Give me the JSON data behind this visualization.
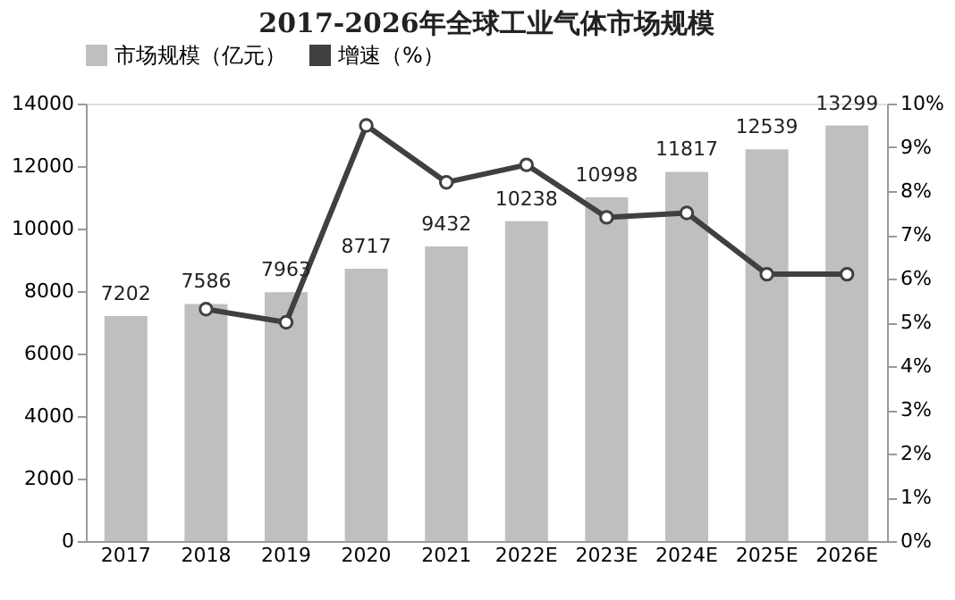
{
  "chart_data": {
    "type": "bar",
    "title": "2017-2026年全球工业气体市场规模",
    "categories": [
      "2017",
      "2018",
      "2019",
      "2020",
      "2021",
      "2022E",
      "2023E",
      "2024E",
      "2025E",
      "2026E"
    ],
    "series": [
      {
        "name": "市场规模（亿元）",
        "color": "#bfbfbf",
        "values": [
          7202,
          7586,
          7963,
          8717,
          9432,
          10238,
          10998,
          11817,
          12539,
          13299
        ],
        "data_labels": true
      },
      {
        "name": "增速（%）",
        "type": "line",
        "axis": "y2",
        "color": "#404040",
        "marker": "circle",
        "values": [
          null,
          5.3,
          5.0,
          9.5,
          8.2,
          8.6,
          7.4,
          7.5,
          6.1,
          6.1
        ]
      }
    ],
    "ylim": [
      0,
      14000
    ],
    "yticks": [
      0,
      2000,
      4000,
      6000,
      8000,
      10000,
      12000,
      14000
    ],
    "y2lim": [
      0,
      10
    ],
    "y2ticks": [
      {
        "value": 0,
        "label": "0%"
      },
      {
        "value": 1,
        "label": "1%"
      },
      {
        "value": 2,
        "label": "2%"
      },
      {
        "value": 3,
        "label": "3%"
      },
      {
        "value": 4,
        "label": "4%"
      },
      {
        "value": 5,
        "label": "5%"
      },
      {
        "value": 6,
        "label": "6%"
      },
      {
        "value": 7,
        "label": "7%"
      },
      {
        "value": 8,
        "label": "8%"
      },
      {
        "value": 9,
        "label": "9%"
      },
      {
        "value": 10,
        "label": "10%"
      }
    ],
    "grid": false,
    "legend": "top"
  }
}
